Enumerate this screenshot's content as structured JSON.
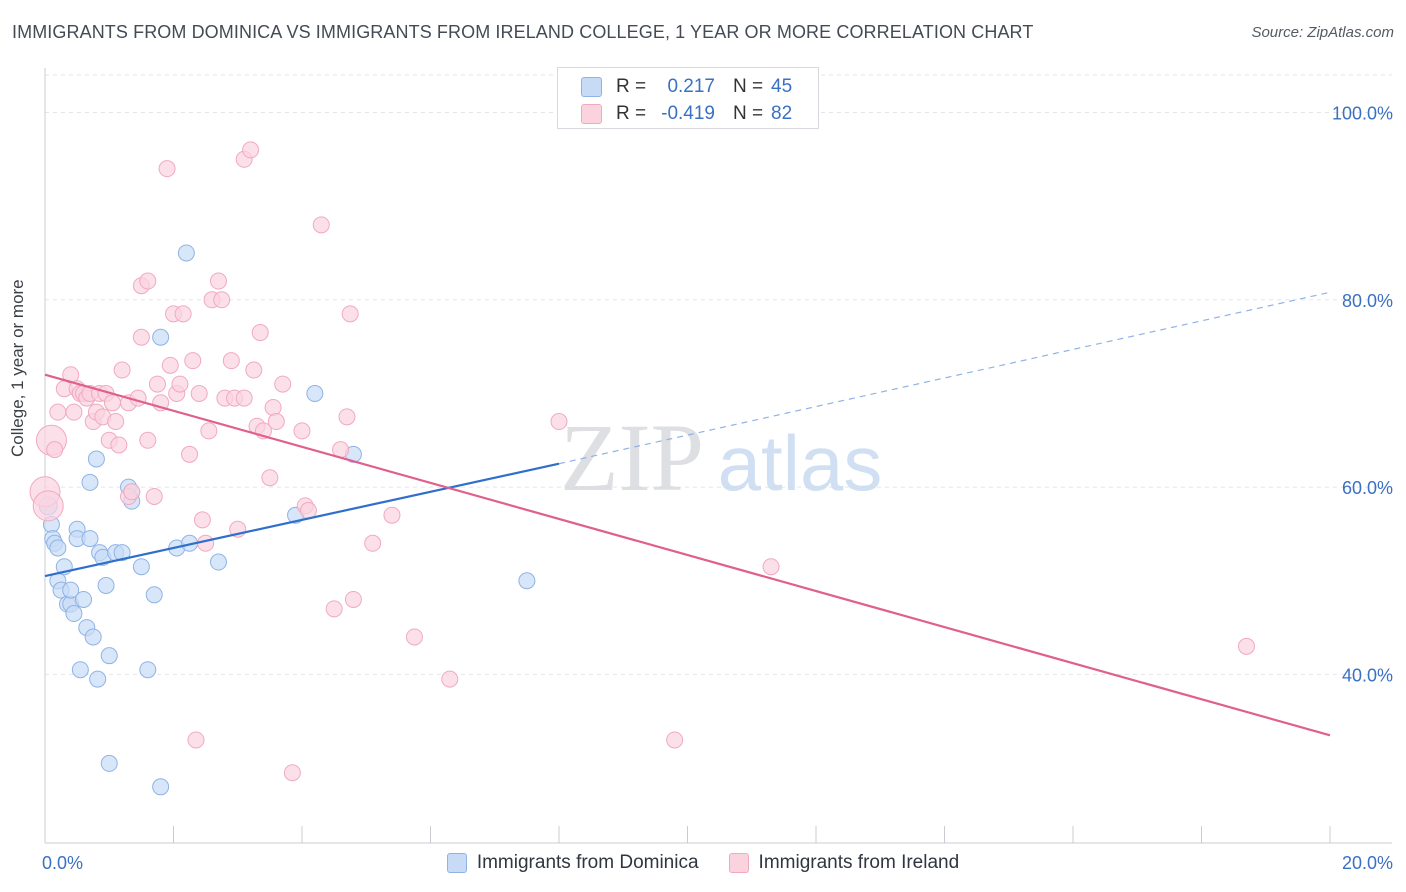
{
  "header": {
    "title": "IMMIGRANTS FROM DOMINICA VS IMMIGRANTS FROM IRELAND COLLEGE, 1 YEAR OR MORE CORRELATION CHART",
    "source": "Source: ZipAtlas.com"
  },
  "stats_legend": {
    "rows": [
      {
        "r_label": "R =",
        "r_value": "0.217",
        "n_label": "N =",
        "n_value": "45",
        "series": "dominica"
      },
      {
        "r_label": "R =",
        "r_value": "-0.419",
        "n_label": "N =",
        "n_value": "82",
        "series": "ireland"
      }
    ]
  },
  "bottom_legend": {
    "dominica": "Immigrants from Dominica",
    "ireland": "Immigrants from Ireland"
  },
  "watermark": {
    "zip": "ZIP",
    "atlas": "atlas"
  },
  "colors": {
    "dominica_fill": "#c7dbf7",
    "dominica_stroke": "#8fb3e6",
    "dominica_line": "#2f6fcb",
    "ireland_fill": "#fbd3df",
    "ireland_stroke": "#f2a9bf",
    "ireland_line": "#e0608d",
    "tick_label": "#3a70c4"
  },
  "chart_data": {
    "type": "scatter",
    "title": "IMMIGRANTS FROM DOMINICA VS IMMIGRANTS FROM IRELAND COLLEGE, 1 YEAR OR MORE CORRELATION CHART",
    "xlabel": "",
    "ylabel": "College, 1 year or more",
    "xlim": [
      0,
      20
    ],
    "ylim": [
      22,
      104
    ],
    "x_tick_labels": [
      {
        "value": 0,
        "label": "0.0%"
      },
      {
        "value": 20,
        "label": "20.0%"
      }
    ],
    "y_tick_labels": [
      {
        "value": 40,
        "label": "40.0%"
      },
      {
        "value": 60,
        "label": "60.0%"
      },
      {
        "value": 80,
        "label": "80.0%"
      },
      {
        "value": 100,
        "label": "100.0%"
      }
    ],
    "grid": true,
    "series": [
      {
        "name": "Immigrants from Dominica",
        "key": "dominica",
        "trend": {
          "x0": 0.0,
          "y0": 50.5,
          "x1": 8.0,
          "y1": 62.5,
          "dash_x1": 20.0,
          "dash_y1": 80.8
        },
        "points": [
          [
            0.05,
            58.0
          ],
          [
            0.1,
            56.0
          ],
          [
            0.12,
            54.5
          ],
          [
            0.15,
            54.0
          ],
          [
            0.2,
            53.5
          ],
          [
            0.2,
            50.0
          ],
          [
            0.25,
            49.0
          ],
          [
            0.3,
            51.5
          ],
          [
            0.35,
            47.5
          ],
          [
            0.4,
            47.5
          ],
          [
            0.4,
            49.0
          ],
          [
            0.45,
            46.5
          ],
          [
            0.5,
            55.5
          ],
          [
            0.5,
            54.5
          ],
          [
            0.55,
            40.5
          ],
          [
            0.6,
            48.0
          ],
          [
            0.65,
            45.0
          ],
          [
            0.7,
            54.5
          ],
          [
            0.7,
            60.5
          ],
          [
            0.75,
            44.0
          ],
          [
            0.8,
            63.0
          ],
          [
            0.82,
            39.5
          ],
          [
            0.85,
            53.0
          ],
          [
            0.9,
            52.5
          ],
          [
            0.95,
            49.5
          ],
          [
            1.0,
            42.0
          ],
          [
            1.0,
            30.5
          ],
          [
            1.1,
            53.0
          ],
          [
            1.2,
            53.0
          ],
          [
            1.3,
            60.0
          ],
          [
            1.35,
            59.5
          ],
          [
            1.35,
            58.5
          ],
          [
            1.5,
            51.5
          ],
          [
            1.6,
            40.5
          ],
          [
            1.7,
            48.5
          ],
          [
            1.8,
            28.0
          ],
          [
            1.8,
            76.0
          ],
          [
            2.05,
            53.5
          ],
          [
            2.2,
            85.0
          ],
          [
            2.25,
            54.0
          ],
          [
            2.7,
            52.0
          ],
          [
            3.9,
            57.0
          ],
          [
            4.2,
            70.0
          ],
          [
            4.8,
            63.5
          ],
          [
            7.5,
            50.0
          ]
        ]
      },
      {
        "name": "Immigrants from Ireland",
        "key": "ireland",
        "trend": {
          "x0": 0.0,
          "y0": 72.0,
          "x1": 20.0,
          "y1": 33.5
        },
        "points": [
          [
            0.0,
            59.5
          ],
          [
            0.05,
            58.0
          ],
          [
            0.1,
            65.0
          ],
          [
            0.15,
            64.0
          ],
          [
            0.2,
            68.0
          ],
          [
            0.3,
            70.5
          ],
          [
            0.4,
            72.0
          ],
          [
            0.45,
            68.0
          ],
          [
            0.5,
            70.5
          ],
          [
            0.55,
            70.0
          ],
          [
            0.6,
            70.0
          ],
          [
            0.65,
            69.5
          ],
          [
            0.7,
            70.0
          ],
          [
            0.75,
            67.0
          ],
          [
            0.8,
            68.0
          ],
          [
            0.85,
            70.0
          ],
          [
            0.9,
            67.5
          ],
          [
            0.95,
            70.0
          ],
          [
            1.0,
            65.0
          ],
          [
            1.05,
            69.0
          ],
          [
            1.1,
            67.0
          ],
          [
            1.15,
            64.5
          ],
          [
            1.2,
            72.5
          ],
          [
            1.3,
            59.0
          ],
          [
            1.3,
            69.0
          ],
          [
            1.35,
            59.5
          ],
          [
            1.45,
            69.5
          ],
          [
            1.5,
            81.5
          ],
          [
            1.5,
            76.0
          ],
          [
            1.6,
            82.0
          ],
          [
            1.6,
            65.0
          ],
          [
            1.7,
            59.0
          ],
          [
            1.75,
            71.0
          ],
          [
            1.8,
            69.0
          ],
          [
            1.9,
            94.0
          ],
          [
            1.95,
            73.0
          ],
          [
            2.0,
            78.5
          ],
          [
            2.05,
            70.0
          ],
          [
            2.1,
            71.0
          ],
          [
            2.15,
            78.5
          ],
          [
            2.25,
            63.5
          ],
          [
            2.3,
            73.5
          ],
          [
            2.35,
            33.0
          ],
          [
            2.4,
            70.0
          ],
          [
            2.45,
            56.5
          ],
          [
            2.5,
            54.0
          ],
          [
            2.55,
            66.0
          ],
          [
            2.6,
            80.0
          ],
          [
            2.7,
            82.0
          ],
          [
            2.75,
            80.0
          ],
          [
            2.8,
            69.5
          ],
          [
            2.9,
            73.5
          ],
          [
            2.95,
            69.5
          ],
          [
            3.0,
            55.5
          ],
          [
            3.1,
            69.5
          ],
          [
            3.1,
            95.0
          ],
          [
            3.2,
            96.0
          ],
          [
            3.25,
            72.5
          ],
          [
            3.3,
            66.5
          ],
          [
            3.35,
            76.5
          ],
          [
            3.4,
            66.0
          ],
          [
            3.5,
            61.0
          ],
          [
            3.55,
            68.5
          ],
          [
            3.6,
            67.0
          ],
          [
            3.7,
            71.0
          ],
          [
            3.85,
            29.5
          ],
          [
            4.0,
            66.0
          ],
          [
            4.05,
            58.0
          ],
          [
            4.1,
            57.5
          ],
          [
            4.3,
            88.0
          ],
          [
            4.5,
            47.0
          ],
          [
            4.6,
            64.0
          ],
          [
            4.7,
            67.5
          ],
          [
            4.75,
            78.5
          ],
          [
            4.8,
            48.0
          ],
          [
            5.1,
            54.0
          ],
          [
            5.4,
            57.0
          ],
          [
            5.75,
            44.0
          ],
          [
            6.3,
            39.5
          ],
          [
            8.0,
            67.0
          ],
          [
            9.8,
            33.0
          ],
          [
            11.3,
            51.5
          ],
          [
            18.7,
            43.0
          ]
        ]
      }
    ]
  }
}
